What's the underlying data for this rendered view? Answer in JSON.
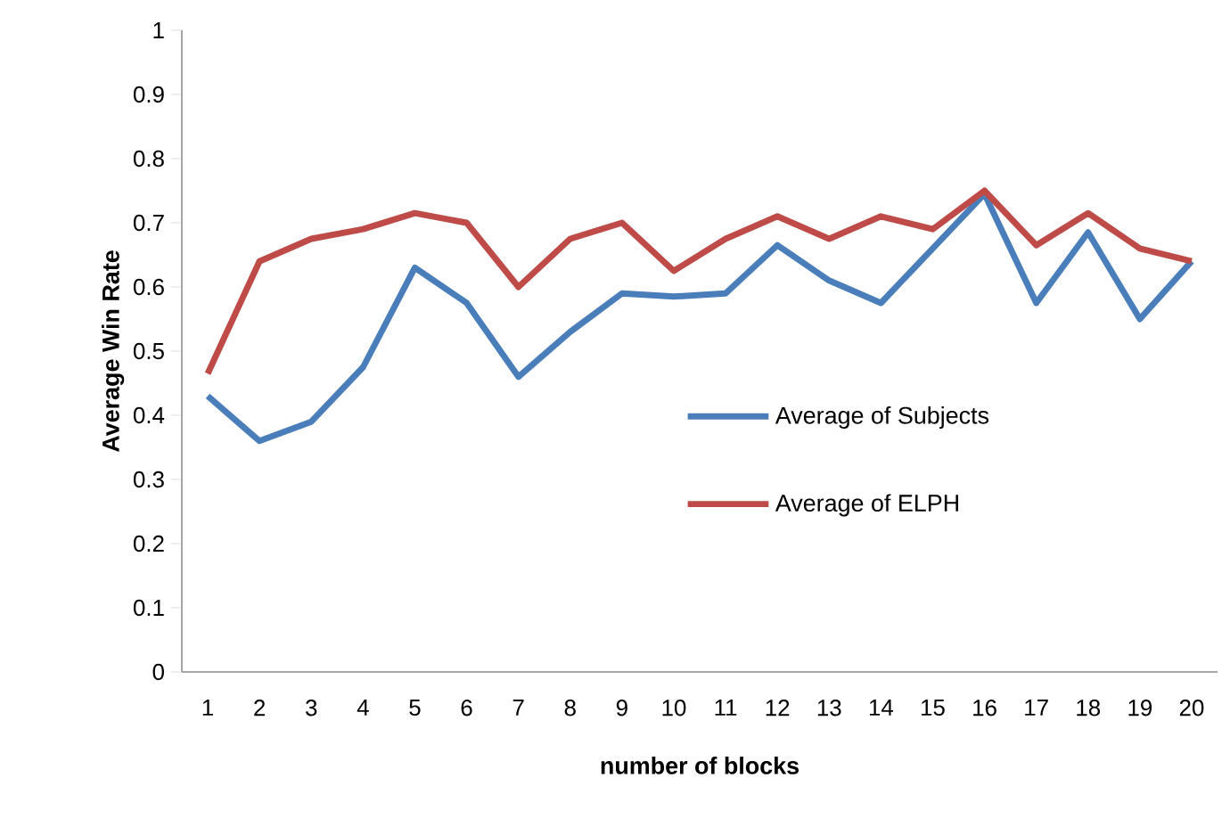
{
  "chart_data": {
    "type": "line",
    "xlabel": "number of blocks",
    "ylabel": "Average Win Rate",
    "categories": [
      "1",
      "2",
      "3",
      "4",
      "5",
      "6",
      "7",
      "8",
      "9",
      "10",
      "11",
      "12",
      "13",
      "14",
      "15",
      "16",
      "17",
      "18",
      "19",
      "20"
    ],
    "series": [
      {
        "name": "Average of Subjects",
        "color": "#4a7ebb",
        "values": [
          0.43,
          0.36,
          0.39,
          0.475,
          0.63,
          0.575,
          0.46,
          0.53,
          0.59,
          0.585,
          0.59,
          0.665,
          0.61,
          0.575,
          0.66,
          0.745,
          0.575,
          0.685,
          0.55,
          0.64
        ]
      },
      {
        "name": "Average of ELPH",
        "color": "#be4b48",
        "values": [
          0.465,
          0.64,
          0.675,
          0.69,
          0.715,
          0.7,
          0.6,
          0.675,
          0.7,
          0.625,
          0.675,
          0.71,
          0.675,
          0.71,
          0.69,
          0.75,
          0.665,
          0.715,
          0.66,
          0.64
        ]
      }
    ],
    "ylim": [
      0,
      1
    ],
    "yticks": [
      0,
      0.1,
      0.2,
      0.3,
      0.4,
      0.5,
      0.6,
      0.7,
      0.8,
      0.9,
      1
    ],
    "grid": false,
    "legend": "right",
    "marker": "none",
    "line_style": "solid"
  }
}
